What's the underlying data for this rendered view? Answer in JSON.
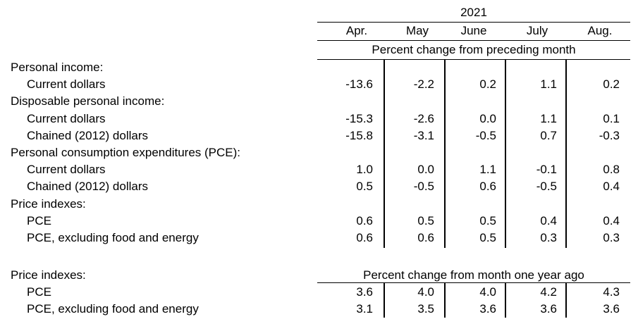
{
  "header": {
    "year": "2021",
    "months": [
      "Apr.",
      "May",
      "June",
      "July",
      "Aug."
    ],
    "section1_caption": "Percent change from preceding month",
    "section2_caption": "Percent change from month one year ago"
  },
  "section1": {
    "rows": [
      {
        "label": "Personal income:",
        "indent": false,
        "values": []
      },
      {
        "label": "Current dollars",
        "indent": true,
        "values": [
          "-13.6",
          "-2.2",
          "0.2",
          "1.1",
          "0.2"
        ]
      },
      {
        "label": "Disposable personal income:",
        "indent": false,
        "values": []
      },
      {
        "label": "Current dollars",
        "indent": true,
        "values": [
          "-15.3",
          "-2.6",
          "0.0",
          "1.1",
          "0.1"
        ]
      },
      {
        "label": "Chained (2012) dollars",
        "indent": true,
        "values": [
          "-15.8",
          "-3.1",
          "-0.5",
          "0.7",
          "-0.3"
        ]
      },
      {
        "label": "Personal consumption expenditures (PCE):",
        "indent": false,
        "values": []
      },
      {
        "label": "Current dollars",
        "indent": true,
        "values": [
          "1.0",
          "0.0",
          "1.1",
          "-0.1",
          "0.8"
        ]
      },
      {
        "label": "Chained (2012) dollars",
        "indent": true,
        "values": [
          "0.5",
          "-0.5",
          "0.6",
          "-0.5",
          "0.4"
        ]
      },
      {
        "label": "Price indexes:",
        "indent": false,
        "values": []
      },
      {
        "label": "PCE",
        "indent": true,
        "values": [
          "0.6",
          "0.5",
          "0.5",
          "0.4",
          "0.4"
        ]
      },
      {
        "label": "PCE, excluding food and energy",
        "indent": true,
        "values": [
          "0.6",
          "0.6",
          "0.5",
          "0.3",
          "0.3"
        ]
      }
    ]
  },
  "section2": {
    "heading": "Price indexes:",
    "rows": [
      {
        "label": "PCE",
        "indent": true,
        "values": [
          "3.6",
          "4.0",
          "4.0",
          "4.2",
          "4.3"
        ]
      },
      {
        "label": "PCE, excluding food and energy",
        "indent": true,
        "values": [
          "3.1",
          "3.5",
          "3.6",
          "3.6",
          "3.6"
        ]
      }
    ]
  }
}
